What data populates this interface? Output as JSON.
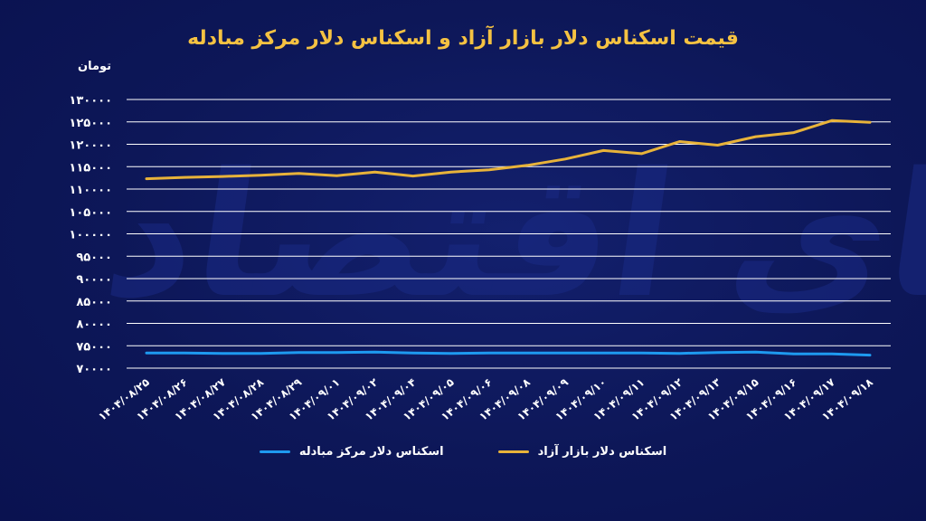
{
  "chart_data": {
    "type": "line",
    "title": "قیمت اسکناس دلار بازار آزاد و اسکناس دلار مرکز مبادله",
    "ylabel": "تومان",
    "xlabel": "",
    "ylim": [
      70000,
      130000
    ],
    "yticks": [
      {
        "value": 130000,
        "label": "۱۳۰۰۰۰"
      },
      {
        "value": 125000,
        "label": "۱۲۵۰۰۰"
      },
      {
        "value": 120000,
        "label": "۱۲۰۰۰۰"
      },
      {
        "value": 115000,
        "label": "۱۱۵۰۰۰"
      },
      {
        "value": 110000,
        "label": "۱۱۰۰۰۰"
      },
      {
        "value": 105000,
        "label": "۱۰۵۰۰۰"
      },
      {
        "value": 100000,
        "label": "۱۰۰۰۰۰"
      },
      {
        "value": 95000,
        "label": "۹۵۰۰۰"
      },
      {
        "value": 90000,
        "label": "۹۰۰۰۰"
      },
      {
        "value": 85000,
        "label": "۸۵۰۰۰"
      },
      {
        "value": 80000,
        "label": "۸۰۰۰۰"
      },
      {
        "value": 75000,
        "label": "۷۵۰۰۰"
      },
      {
        "value": 70000,
        "label": "۷۰۰۰۰"
      }
    ],
    "categories": [
      "۱۴۰۴/۰۸/۲۵",
      "۱۴۰۴/۰۸/۲۶",
      "۱۴۰۴/۰۸/۲۷",
      "۱۴۰۴/۰۸/۲۸",
      "۱۴۰۴/۰۸/۲۹",
      "۱۴۰۴/۰۹/۰۱",
      "۱۴۰۴/۰۹/۰۲",
      "۱۴۰۴/۰۹/۰۴",
      "۱۴۰۴/۰۹/۰۵",
      "۱۴۰۴/۰۹/۰۶",
      "۱۴۰۴/۰۹/۰۸",
      "۱۴۰۴/۰۹/۰۹",
      "۱۴۰۴/۰۹/۱۰",
      "۱۴۰۴/۰۹/۱۱",
      "۱۴۰۴/۰۹/۱۲",
      "۱۴۰۴/۰۹/۱۳",
      "۱۴۰۴/۰۹/۱۵",
      "۱۴۰۴/۰۹/۱۶",
      "۱۴۰۴/۰۹/۱۷",
      "۱۴۰۴/۰۹/۱۸"
    ],
    "series": [
      {
        "name": "اسکناس دلار بازار آزاد",
        "color": "#e8b33a",
        "values": [
          112300,
          112600,
          112800,
          113100,
          113500,
          113000,
          113800,
          112900,
          113800,
          114300,
          115300,
          116700,
          118600,
          117900,
          120600,
          119800,
          121700,
          122600,
          125300,
          124900
        ]
      },
      {
        "name": "اسکناس دلار مرکز مبادله",
        "color": "#1e9af0",
        "values": [
          73400,
          73400,
          73300,
          73300,
          73500,
          73500,
          73600,
          73400,
          73300,
          73400,
          73400,
          73400,
          73400,
          73400,
          73300,
          73500,
          73600,
          73200,
          73200,
          72900
        ]
      }
    ],
    "grid": true,
    "legend_position": "bottom"
  },
  "colors": {
    "background": "#0d1758",
    "gridline": "#ffffff",
    "title": "#f5c242",
    "text": "#ffffff"
  }
}
